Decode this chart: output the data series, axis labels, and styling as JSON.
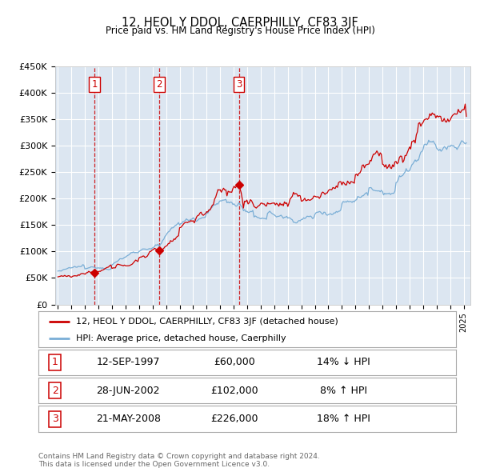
{
  "title": "12, HEOL Y DDOL, CAERPHILLY, CF83 3JF",
  "subtitle": "Price paid vs. HM Land Registry's House Price Index (HPI)",
  "hpi_label": "HPI: Average price, detached house, Caerphilly",
  "property_label": "12, HEOL Y DDOL, CAERPHILLY, CF83 3JF (detached house)",
  "red_color": "#cc0000",
  "blue_color": "#7aaed6",
  "background_color": "#dce6f1",
  "sale_events": [
    {
      "num": 1,
      "date": "12-SEP-1997",
      "price": 60000,
      "pct": "14%",
      "direction": "↓",
      "year_x": 1997.71
    },
    {
      "num": 2,
      "date": "28-JUN-2002",
      "price": 102000,
      "pct": "8%",
      "direction": "↑",
      "year_x": 2002.49
    },
    {
      "num": 3,
      "date": "21-MAY-2008",
      "price": 226000,
      "pct": "18%",
      "direction": "↑",
      "year_x": 2008.38
    }
  ],
  "ylim": [
    0,
    450000
  ],
  "yticks": [
    0,
    50000,
    100000,
    150000,
    200000,
    250000,
    300000,
    350000,
    400000,
    450000
  ],
  "ytick_labels": [
    "£0",
    "£50K",
    "£100K",
    "£150K",
    "£200K",
    "£250K",
    "£300K",
    "£350K",
    "£400K",
    "£450K"
  ],
  "xlim_start": 1994.8,
  "xlim_end": 2025.5,
  "footer": "Contains HM Land Registry data © Crown copyright and database right 2024.\nThis data is licensed under the Open Government Licence v3.0."
}
